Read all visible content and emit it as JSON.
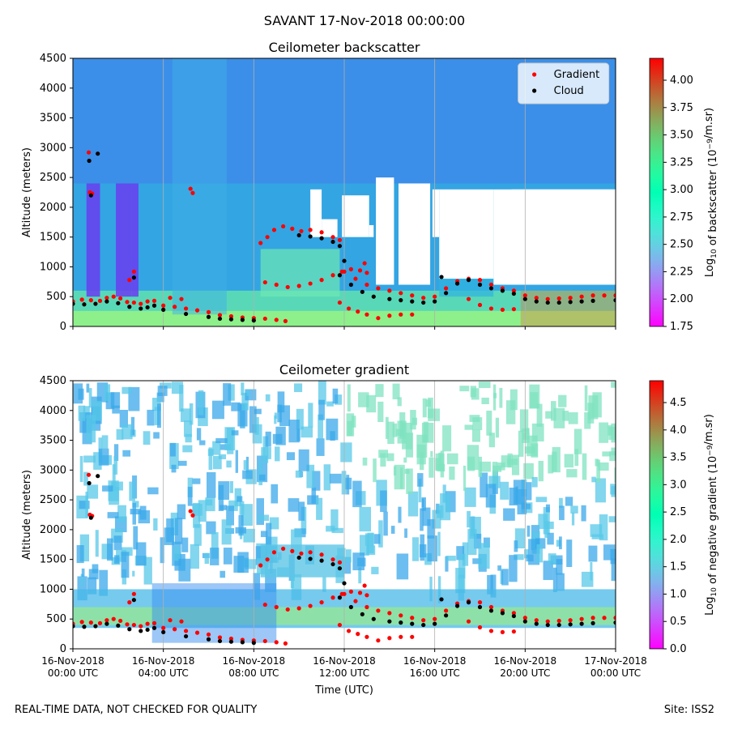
{
  "suptitle": "SAVANT 17-Nov-2018 00:00:00",
  "footer_left": "REAL-TIME DATA, NOT CHECKED FOR QUALITY",
  "footer_right": "Site: ISS2",
  "chart_data": [
    {
      "type": "heatmap",
      "title": "Ceilometer backscatter",
      "ylabel": "Altitude (meters)",
      "xlabel": "",
      "ylim": [
        0,
        4500
      ],
      "yticks": [
        0,
        500,
        1000,
        1500,
        2000,
        2500,
        3000,
        3500,
        4000,
        4500
      ],
      "xlim_hours": [
        0,
        24
      ],
      "xticks": [
        {
          "h": 0,
          "l1": "16-Nov-2018",
          "l2": "00:00 UTC"
        },
        {
          "h": 4,
          "l1": "16-Nov-2018",
          "l2": "04:00 UTC"
        },
        {
          "h": 8,
          "l1": "16-Nov-2018",
          "l2": "08:00 UTC"
        },
        {
          "h": 12,
          "l1": "16-Nov-2018",
          "l2": "12:00 UTC"
        },
        {
          "h": 16,
          "l1": "16-Nov-2018",
          "l2": "16:00 UTC"
        },
        {
          "h": 20,
          "l1": "16-Nov-2018",
          "l2": "20:00 UTC"
        },
        {
          "h": 24,
          "l1": "17-Nov-2018",
          "l2": "00:00 UTC"
        }
      ],
      "show_xtick_labels": false,
      "grid": "vertical",
      "legend": {
        "position": "top-right",
        "entries": [
          {
            "name": "Gradient",
            "color": "#ff0000"
          },
          {
            "name": "Cloud",
            "color": "#000000"
          }
        ]
      },
      "colorbar": {
        "label_prefix": "Log",
        "label_sub": "10",
        "label_mid": " of backscatter (10",
        "label_sup": "−9",
        "label_suffix": "/m.sr)",
        "min": 1.75,
        "max": 4.2,
        "ticks": [
          "1.75",
          "2.00",
          "2.25",
          "2.50",
          "2.75",
          "3.00",
          "3.25",
          "3.50",
          "3.75",
          "4.00"
        ]
      },
      "background_level": 2.1,
      "gradient_points": [
        [
          0,
          420
        ],
        [
          0.4,
          450
        ],
        [
          0.8,
          440
        ],
        [
          1.2,
          430
        ],
        [
          1.5,
          480
        ],
        [
          1.8,
          500
        ],
        [
          2.1,
          470
        ],
        [
          2.4,
          410
        ],
        [
          2.7,
          400
        ],
        [
          3.0,
          380
        ],
        [
          3.3,
          420
        ],
        [
          3.6,
          430
        ],
        [
          4.0,
          350
        ],
        [
          4.5,
          330
        ],
        [
          5,
          300
        ],
        [
          5.5,
          270
        ],
        [
          6,
          240
        ],
        [
          6.5,
          190
        ],
        [
          7,
          170
        ],
        [
          7.5,
          150
        ],
        [
          8,
          140
        ],
        [
          8.5,
          130
        ],
        [
          9,
          110
        ],
        [
          9.4,
          90
        ],
        [
          0.7,
          2920
        ],
        [
          0.75,
          2250
        ],
        [
          0.85,
          2230
        ],
        [
          2.7,
          920
        ],
        [
          2.5,
          780
        ],
        [
          5.2,
          2310
        ],
        [
          5.3,
          2240
        ],
        [
          4.3,
          480
        ],
        [
          4.8,
          460
        ],
        [
          8.3,
          1400
        ],
        [
          8.6,
          1500
        ],
        [
          8.9,
          1620
        ],
        [
          9.3,
          1680
        ],
        [
          9.7,
          1640
        ],
        [
          10.1,
          1600
        ],
        [
          10.5,
          1620
        ],
        [
          11.0,
          1580
        ],
        [
          11.5,
          1500
        ],
        [
          11.8,
          1450
        ],
        [
          8.5,
          740
        ],
        [
          9.0,
          700
        ],
        [
          9.5,
          660
        ],
        [
          10.0,
          680
        ],
        [
          10.5,
          720
        ],
        [
          11.0,
          780
        ],
        [
          11.5,
          860
        ],
        [
          11.9,
          920
        ],
        [
          12.3,
          960
        ],
        [
          12.7,
          940
        ],
        [
          13.0,
          900
        ],
        [
          11.8,
          400
        ],
        [
          12.2,
          300
        ],
        [
          12.6,
          250
        ],
        [
          13.0,
          200
        ],
        [
          13.5,
          140
        ],
        [
          14,
          180
        ],
        [
          14.5,
          200
        ],
        [
          15,
          200
        ],
        [
          12.0,
          920
        ],
        [
          12.5,
          800
        ],
        [
          13.0,
          700
        ],
        [
          13.5,
          640
        ],
        [
          14.0,
          600
        ],
        [
          14.5,
          560
        ],
        [
          15.0,
          520
        ],
        [
          15.5,
          480
        ],
        [
          16.0,
          500
        ],
        [
          16.5,
          640
        ],
        [
          17,
          760
        ],
        [
          17.5,
          800
        ],
        [
          18,
          780
        ],
        [
          18.5,
          700
        ],
        [
          19,
          640
        ],
        [
          19.5,
          600
        ],
        [
          20,
          520
        ],
        [
          20.5,
          480
        ],
        [
          21,
          460
        ],
        [
          21.5,
          470
        ],
        [
          22,
          480
        ],
        [
          22.5,
          500
        ],
        [
          23,
          520
        ],
        [
          23.5,
          520
        ],
        [
          24,
          520
        ],
        [
          17.5,
          460
        ],
        [
          18,
          360
        ],
        [
          18.5,
          300
        ],
        [
          19,
          280
        ],
        [
          19.5,
          290
        ],
        [
          12.9,
          1060
        ]
      ],
      "cloud_points": [
        [
          0,
          380
        ],
        [
          0.5,
          370
        ],
        [
          1,
          380
        ],
        [
          1.5,
          420
        ],
        [
          2.0,
          390
        ],
        [
          2.5,
          330
        ],
        [
          3.0,
          300
        ],
        [
          3.3,
          320
        ],
        [
          3.6,
          350
        ],
        [
          4.0,
          280
        ],
        [
          5,
          210
        ],
        [
          6,
          160
        ],
        [
          6.5,
          130
        ],
        [
          7,
          120
        ],
        [
          7.5,
          110
        ],
        [
          8,
          100
        ],
        [
          0.72,
          2780
        ],
        [
          0.8,
          2200
        ],
        [
          2.7,
          820
        ],
        [
          10.0,
          1530
        ],
        [
          10.5,
          1510
        ],
        [
          11.0,
          1480
        ],
        [
          11.5,
          1420
        ],
        [
          11.8,
          1350
        ],
        [
          12.0,
          1100
        ],
        [
          11.8,
          860
        ],
        [
          12.3,
          700
        ],
        [
          12.8,
          580
        ],
        [
          13.3,
          500
        ],
        [
          14,
          460
        ],
        [
          14.5,
          440
        ],
        [
          15.0,
          420
        ],
        [
          15.5,
          400
        ],
        [
          16,
          420
        ],
        [
          16.5,
          560
        ],
        [
          17,
          720
        ],
        [
          17.5,
          780
        ],
        [
          18,
          700
        ],
        [
          18.5,
          640
        ],
        [
          19,
          600
        ],
        [
          19.5,
          550
        ],
        [
          20,
          460
        ],
        [
          20.5,
          420
        ],
        [
          21,
          400
        ],
        [
          21.5,
          400
        ],
        [
          22,
          410
        ],
        [
          22.5,
          420
        ],
        [
          23,
          430
        ],
        [
          24,
          440
        ],
        [
          1.1,
          2900
        ],
        [
          16.3,
          830
        ]
      ]
    },
    {
      "type": "heatmap",
      "title": "Ceilometer gradient",
      "ylabel": "Altitude (meters)",
      "xlabel": "Time (UTC)",
      "ylim": [
        0,
        4500
      ],
      "yticks": [
        0,
        500,
        1000,
        1500,
        2000,
        2500,
        3000,
        3500,
        4000,
        4500
      ],
      "xlim_hours": [
        0,
        24
      ],
      "xticks": [
        {
          "h": 0,
          "l1": "16-Nov-2018",
          "l2": "00:00 UTC"
        },
        {
          "h": 4,
          "l1": "16-Nov-2018",
          "l2": "04:00 UTC"
        },
        {
          "h": 8,
          "l1": "16-Nov-2018",
          "l2": "08:00 UTC"
        },
        {
          "h": 12,
          "l1": "16-Nov-2018",
          "l2": "12:00 UTC"
        },
        {
          "h": 16,
          "l1": "16-Nov-2018",
          "l2": "16:00 UTC"
        },
        {
          "h": 20,
          "l1": "16-Nov-2018",
          "l2": "20:00 UTC"
        },
        {
          "h": 24,
          "l1": "17-Nov-2018",
          "l2": "00:00 UTC"
        }
      ],
      "show_xtick_labels": true,
      "grid": "vertical",
      "colorbar": {
        "label_prefix": "Log",
        "label_sub": "10",
        "label_mid": " of negative gradient (10",
        "label_sup": "−9",
        "label_suffix": "/m.sr)",
        "min": 0.0,
        "max": 4.9,
        "ticks": [
          "0.0",
          "0.5",
          "1.0",
          "1.5",
          "2.0",
          "2.5",
          "3.0",
          "3.5",
          "4.0",
          "4.5"
        ]
      }
    }
  ]
}
